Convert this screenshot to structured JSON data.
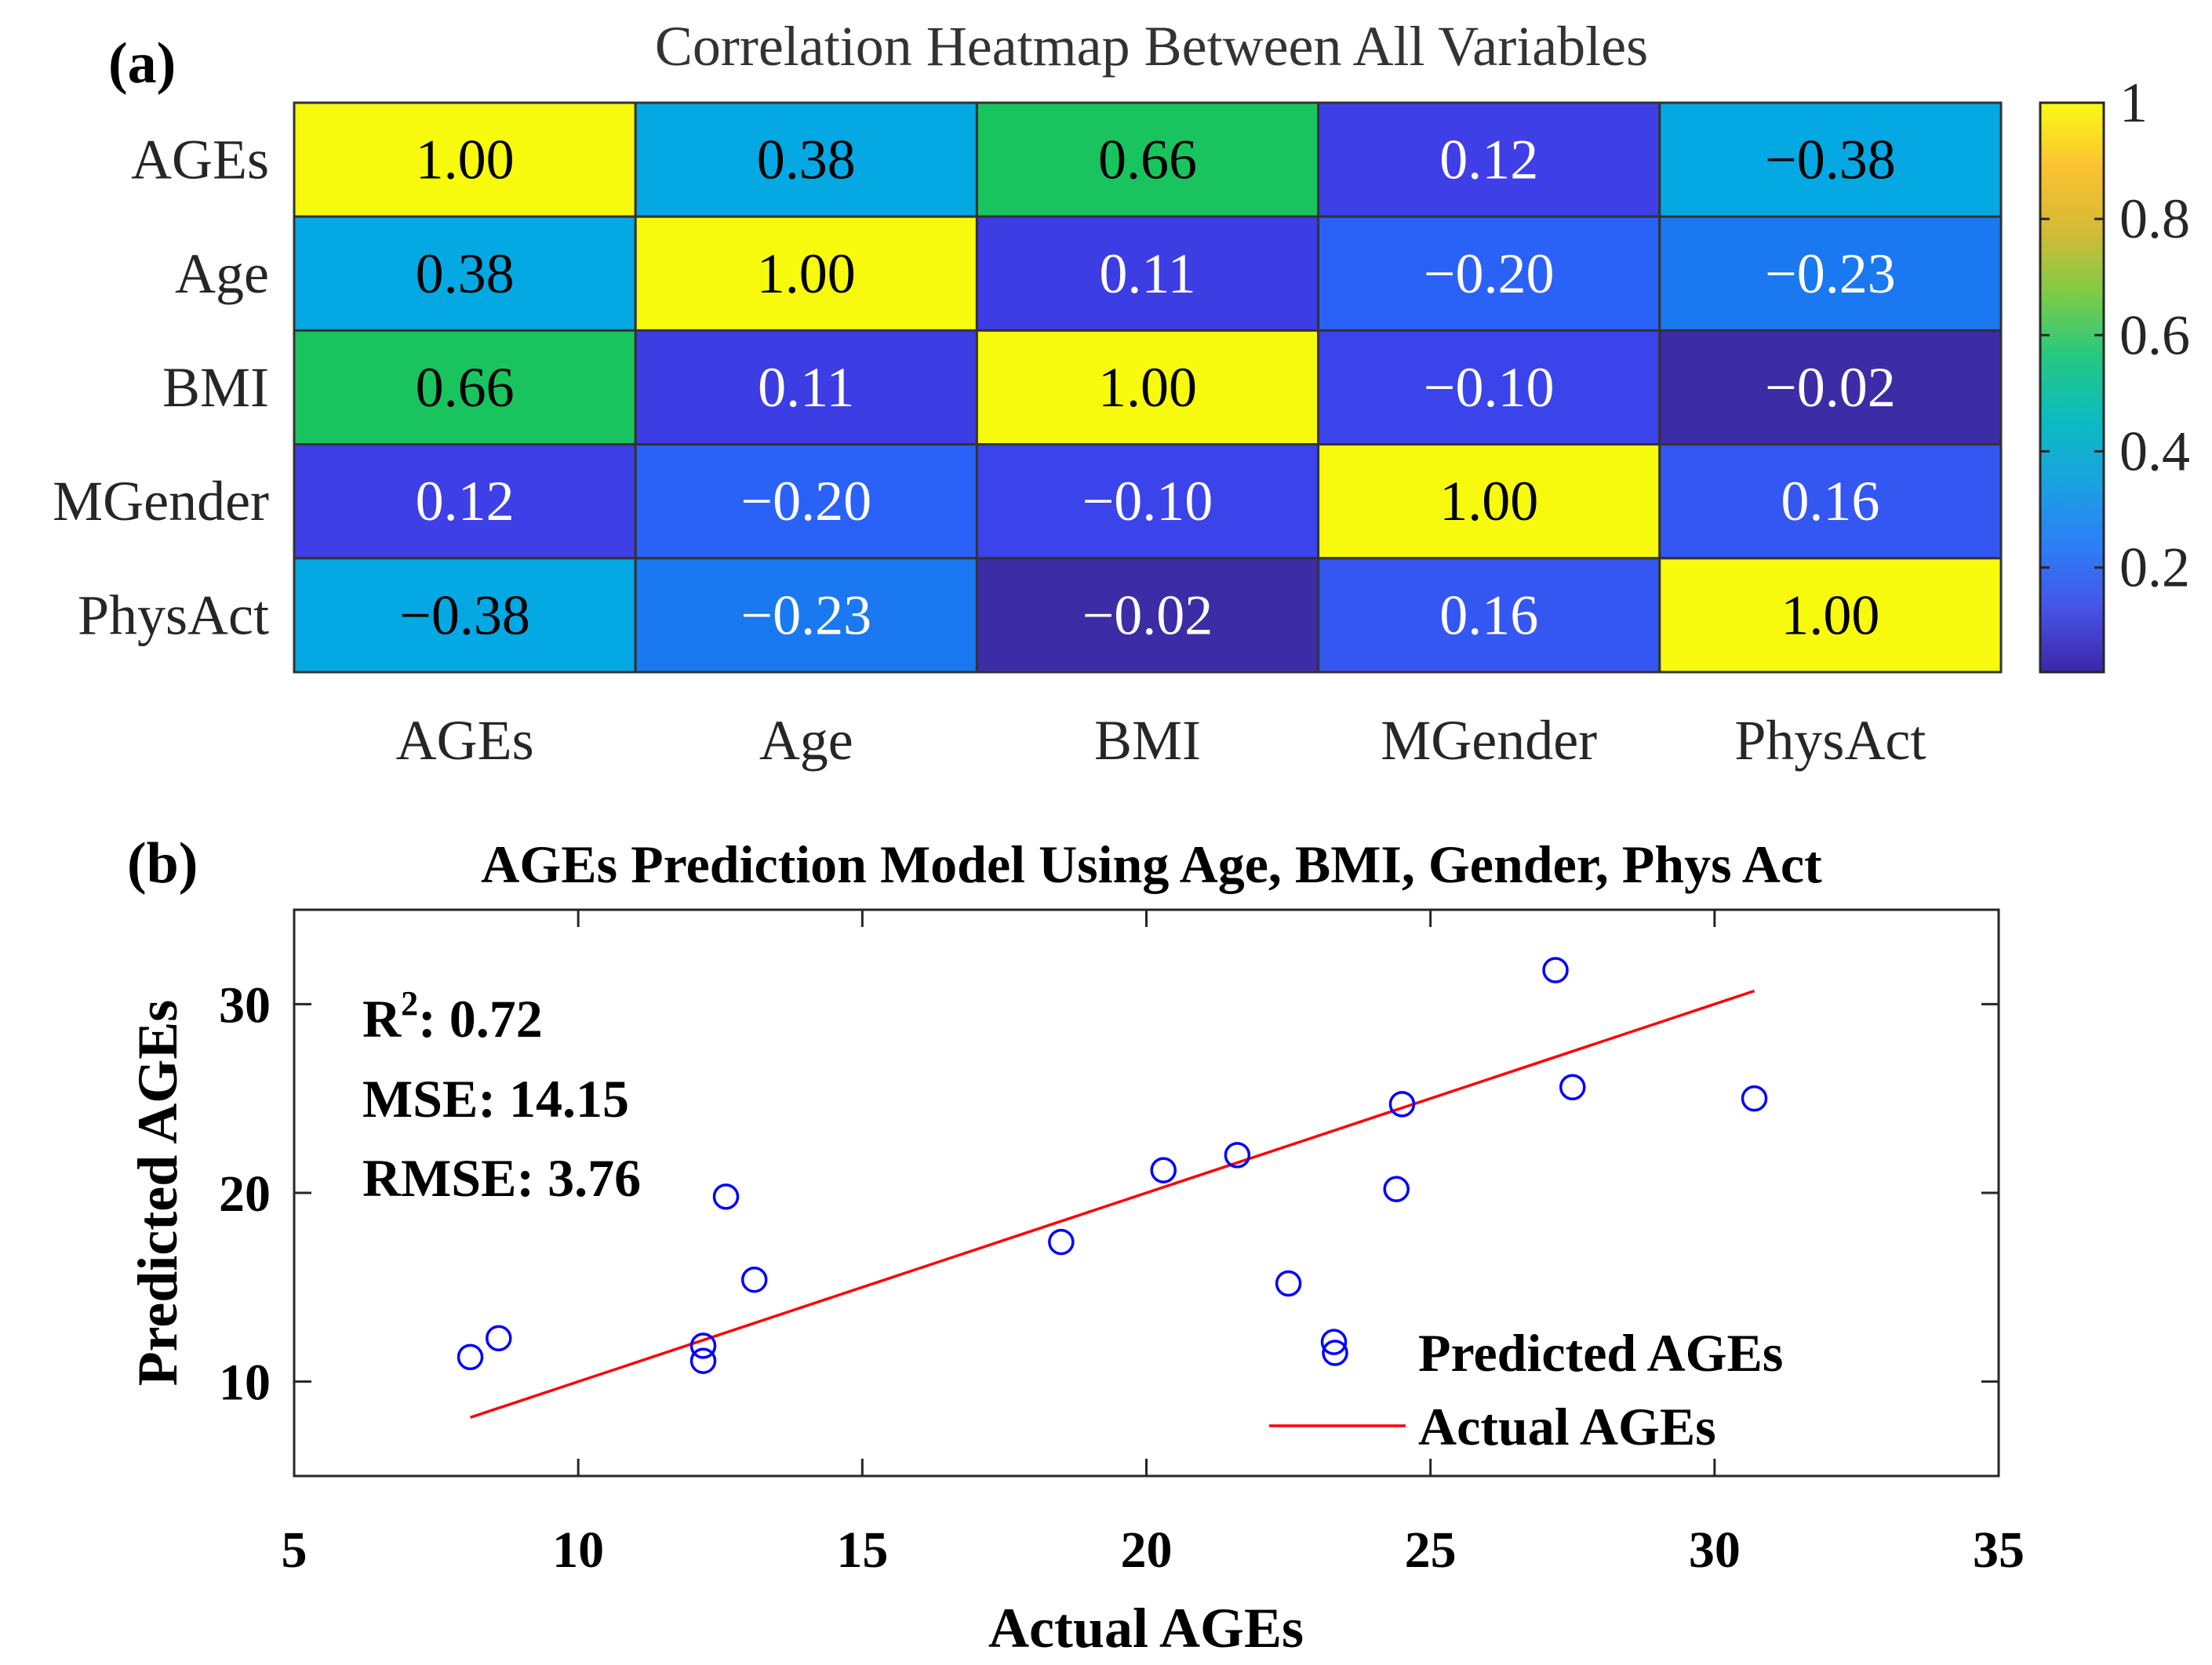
{
  "panel_a": {
    "label": "(a)",
    "chart_data": {
      "type": "heatmap",
      "title": "Correlation Heatmap Between All Variables",
      "row_labels": [
        "AGEs",
        "Age",
        "BMI",
        "MGender",
        "PhysAct"
      ],
      "col_labels": [
        "AGEs",
        "Age",
        "BMI",
        "MGender",
        "PhysAct"
      ],
      "values": [
        [
          1.0,
          0.38,
          0.66,
          0.12,
          -0.38
        ],
        [
          0.38,
          1.0,
          0.11,
          -0.2,
          -0.23
        ],
        [
          0.66,
          0.11,
          1.0,
          -0.1,
          -0.02
        ],
        [
          0.12,
          -0.2,
          -0.1,
          1.0,
          0.16
        ],
        [
          -0.38,
          -0.23,
          -0.02,
          0.16,
          1.0
        ]
      ],
      "cell_labels": [
        [
          "1.00",
          "0.38",
          "0.66",
          "0.12",
          "−0.38"
        ],
        [
          "0.38",
          "1.00",
          "0.11",
          "−0.20",
          "−0.23"
        ],
        [
          "0.66",
          "0.11",
          "1.00",
          "−0.10",
          "−0.02"
        ],
        [
          "0.12",
          "−0.20",
          "−0.10",
          "1.00",
          "0.16"
        ],
        [
          "−0.38",
          "−0.23",
          "−0.02",
          "0.16",
          "1.00"
        ]
      ],
      "cell_colors": [
        [
          "#f8fa0d",
          "#04a8e2",
          "#19c45f",
          "#3e3fe6",
          "#04a8e2"
        ],
        [
          "#04a8e2",
          "#f8fa0d",
          "#3d3de4",
          "#2a62f8",
          "#1a78f0"
        ],
        [
          "#19c45f",
          "#3d3de4",
          "#f8fa0d",
          "#3a44ea",
          "#3c2ca6"
        ],
        [
          "#3e3fe6",
          "#2a62f8",
          "#3a44ea",
          "#f8fa0d",
          "#3457f2"
        ],
        [
          "#04a8e2",
          "#1a78f0",
          "#3c2ca6",
          "#3457f2",
          "#f8fa0d"
        ]
      ],
      "dark_text_cells": [
        [
          0,
          0
        ],
        [
          0,
          1
        ],
        [
          0,
          2
        ],
        [
          0,
          4
        ],
        [
          1,
          0
        ],
        [
          1,
          1
        ],
        [
          2,
          0
        ],
        [
          2,
          2
        ],
        [
          3,
          3
        ],
        [
          4,
          0
        ],
        [
          4,
          4
        ]
      ],
      "colorbar": {
        "ticks": [
          "1",
          "0.8",
          "0.6",
          "0.4",
          "0.2"
        ],
        "tick_values": [
          1,
          0.8,
          0.6,
          0.4,
          0.2
        ],
        "range": [
          0.02,
          1.0
        ],
        "colors": [
          "#3e26a8",
          "#4653e6",
          "#2d7ef7",
          "#1aa2e0",
          "#0bbcc0",
          "#26c880",
          "#7fcb47",
          "#d6ba35",
          "#fbc232",
          "#f9fa14"
        ]
      }
    }
  },
  "panel_b": {
    "label": "(b)",
    "chart_data": {
      "type": "scatter",
      "title": "AGEs Prediction Model Using Age, BMI, Gender, Phys Act",
      "xlabel": "Actual AGEs",
      "ylabel": "Predicted AGEs",
      "xlim": [
        5,
        35
      ],
      "ylim": [
        5,
        35
      ],
      "xticks": [
        "5",
        "10",
        "15",
        "20",
        "25",
        "30",
        "35"
      ],
      "yticks": [
        "10",
        "20",
        "30"
      ],
      "xtick_values": [
        5,
        10,
        15,
        20,
        25,
        30,
        35
      ],
      "ytick_values": [
        10,
        20,
        30
      ],
      "stats": {
        "r2_label": "R",
        "r2_sup": "2",
        "r2_value": ": 0.72",
        "mse": "MSE: 14.15",
        "rmse": "RMSE: 3.76"
      },
      "series": [
        {
          "name": "Predicted AGEs",
          "kind": "scatter",
          "color": "#0000ff",
          "x": [
            8.1,
            8.6,
            12.2,
            12.2,
            12.6,
            13.1,
            18.5,
            20.3,
            21.6,
            22.5,
            23.3,
            24.4,
            24.5,
            27.2,
            27.5,
            30.7
          ],
          "y": [
            11.3,
            12.3,
            11.9,
            11.1,
            19.8,
            15.4,
            17.4,
            21.2,
            22.0,
            15.2,
            12.1,
            20.2,
            24.7,
            31.8,
            25.6,
            25.0
          ]
        },
        {
          "name": "Actual AGEs",
          "kind": "line",
          "color": "#ff0000",
          "x": [
            8.1,
            30.7
          ],
          "y": [
            8.1,
            30.7
          ]
        }
      ]
    }
  }
}
